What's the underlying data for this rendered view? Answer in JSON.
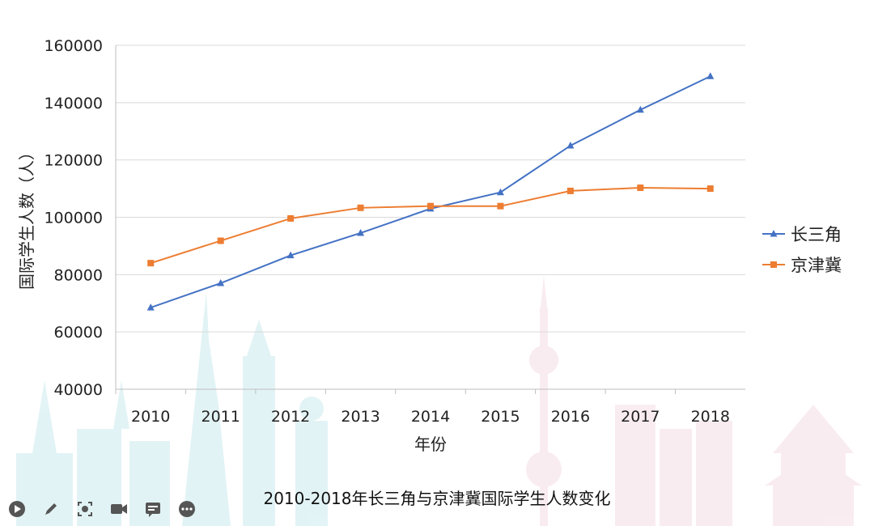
{
  "chart_data": {
    "type": "line",
    "title": "2010-2018年长三角与京津冀国际学生人数变化",
    "xlabel": "年份",
    "ylabel": "国际学生人数（人）",
    "categories": [
      "2010",
      "2011",
      "2012",
      "2013",
      "2014",
      "2015",
      "2016",
      "2017",
      "2018"
    ],
    "ylim": [
      40000,
      160000
    ],
    "yticks": [
      40000,
      60000,
      80000,
      100000,
      120000,
      140000,
      160000
    ],
    "grid": true,
    "legend_position": "right",
    "series": [
      {
        "name": "长三角",
        "color": "#4472C4",
        "marker": "triangle",
        "values": [
          68500,
          77000,
          86700,
          94500,
          103000,
          108700,
          125000,
          137500,
          149200
        ]
      },
      {
        "name": "京津冀",
        "color": "#ED7D31",
        "marker": "square",
        "values": [
          84000,
          91800,
          99600,
          103300,
          103900,
          103900,
          109200,
          110300,
          110000
        ]
      }
    ]
  },
  "toolbar": {
    "icons": [
      "play-icon",
      "pen-icon",
      "screenshot-icon",
      "video-icon",
      "subtitle-icon",
      "more-icon"
    ]
  }
}
